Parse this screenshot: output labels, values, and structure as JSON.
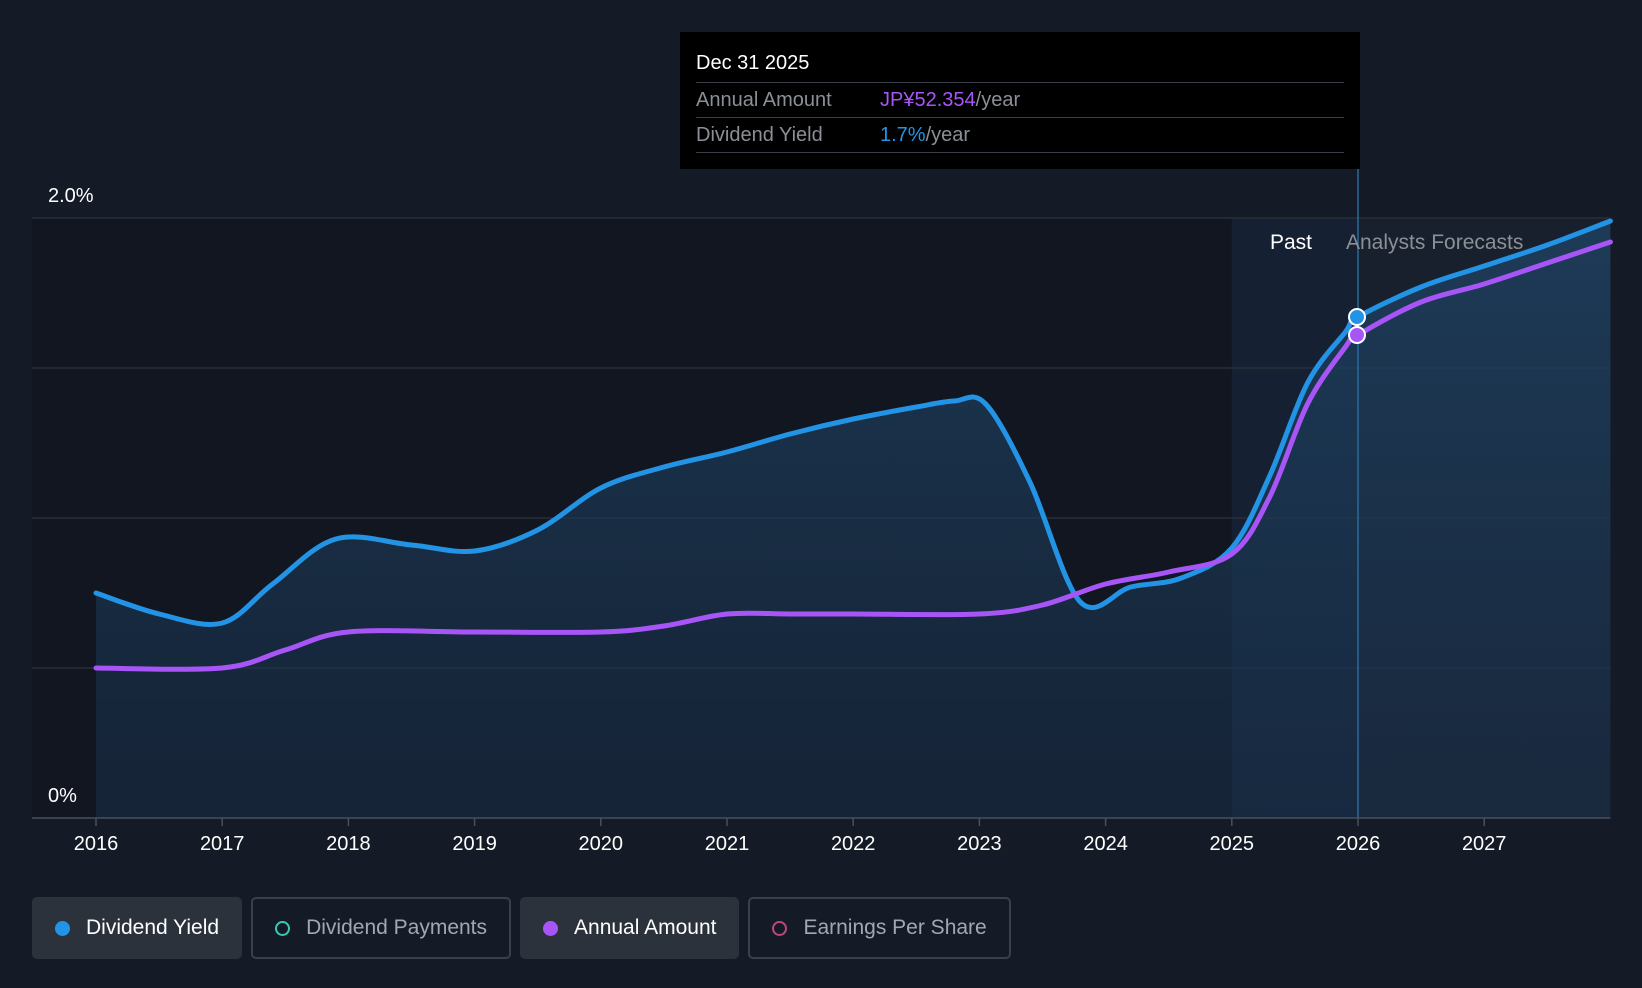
{
  "tooltip": {
    "date": "Dec 31 2025",
    "rows": [
      {
        "label": "Annual Amount",
        "value": "JP¥52.354",
        "unit": "/year",
        "color": "#a855f7"
      },
      {
        "label": "Dividend Yield",
        "value": "1.7%",
        "unit": "/year",
        "color": "#2394e5"
      }
    ]
  },
  "legend": [
    {
      "label": "Dividend Yield",
      "color": "#2394e5",
      "style": "filled",
      "active": true
    },
    {
      "label": "Dividend Payments",
      "color": "#3ec7b6",
      "style": "hollow",
      "active": false
    },
    {
      "label": "Annual Amount",
      "color": "#a855f7",
      "style": "filled",
      "active": true
    },
    {
      "label": "Earnings Per Share",
      "color": "#c2457b",
      "style": "hollow",
      "active": false
    }
  ],
  "chart_data": {
    "type": "line",
    "title": "",
    "xlabel": "",
    "ylabel": "",
    "y_tick_labels": [
      "0%",
      "2.0%"
    ],
    "ylim": [
      0,
      2.0
    ],
    "xlim": [
      2016,
      2028
    ],
    "x_ticks": [
      2016,
      2017,
      2018,
      2019,
      2020,
      2021,
      2022,
      2023,
      2024,
      2025,
      2026,
      2027
    ],
    "x_tick_labels": [
      "2016",
      "2017",
      "2018",
      "2019",
      "2020",
      "2021",
      "2022",
      "2023",
      "2024",
      "2025",
      "2026",
      "2027"
    ],
    "past_label": "Past",
    "forecast_label": "Analysts Forecasts",
    "forecast_start": 2026.0,
    "tooltip_x": 2026.0,
    "series": [
      {
        "name": "Dividend Yield",
        "unit": "%",
        "color": "#2394e5",
        "filled": true,
        "points": [
          [
            2016.0,
            0.75
          ],
          [
            2016.5,
            0.68
          ],
          [
            2017.0,
            0.65
          ],
          [
            2017.4,
            0.78
          ],
          [
            2017.9,
            0.93
          ],
          [
            2018.5,
            0.91
          ],
          [
            2019.0,
            0.89
          ],
          [
            2019.5,
            0.96
          ],
          [
            2020.0,
            1.1
          ],
          [
            2020.5,
            1.17
          ],
          [
            2021.0,
            1.22
          ],
          [
            2021.5,
            1.28
          ],
          [
            2022.0,
            1.33
          ],
          [
            2022.5,
            1.37
          ],
          [
            2022.8,
            1.39
          ],
          [
            2023.05,
            1.38
          ],
          [
            2023.4,
            1.12
          ],
          [
            2023.8,
            0.72
          ],
          [
            2024.2,
            0.77
          ],
          [
            2024.6,
            0.8
          ],
          [
            2025.0,
            0.9
          ],
          [
            2025.3,
            1.14
          ],
          [
            2025.6,
            1.45
          ],
          [
            2025.9,
            1.62
          ],
          [
            2026.0,
            1.67
          ],
          [
            2026.5,
            1.77
          ],
          [
            2027.0,
            1.84
          ],
          [
            2027.5,
            1.91
          ],
          [
            2028.0,
            1.99
          ]
        ]
      },
      {
        "name": "Annual Amount",
        "unit": "JP¥",
        "color": "#a855f7",
        "filled": false,
        "points": [
          [
            2016.0,
            0.5
          ],
          [
            2017.0,
            0.5
          ],
          [
            2017.5,
            0.56
          ],
          [
            2018.0,
            0.62
          ],
          [
            2019.0,
            0.62
          ],
          [
            2020.0,
            0.62
          ],
          [
            2020.5,
            0.64
          ],
          [
            2021.0,
            0.68
          ],
          [
            2021.5,
            0.68
          ],
          [
            2022.0,
            0.68
          ],
          [
            2023.0,
            0.68
          ],
          [
            2023.5,
            0.71
          ],
          [
            2024.0,
            0.78
          ],
          [
            2024.5,
            0.82
          ],
          [
            2025.0,
            0.88
          ],
          [
            2025.3,
            1.07
          ],
          [
            2025.6,
            1.38
          ],
          [
            2025.9,
            1.57
          ],
          [
            2026.0,
            1.61
          ],
          [
            2026.5,
            1.72
          ],
          [
            2027.0,
            1.78
          ],
          [
            2027.5,
            1.85
          ],
          [
            2028.0,
            1.92
          ]
        ]
      }
    ]
  }
}
